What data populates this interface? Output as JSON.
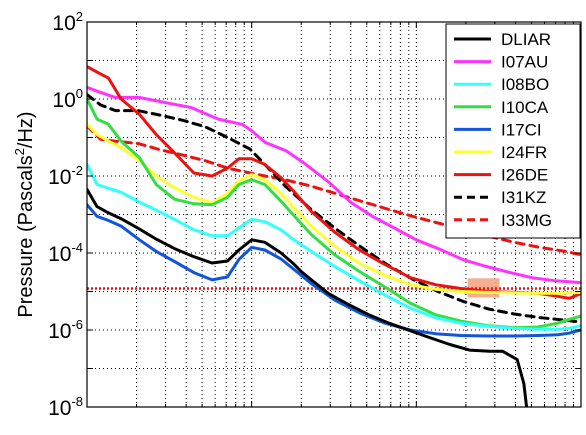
{
  "chart_data": {
    "type": "line",
    "title": "",
    "xlabel": "",
    "ylabel": {
      "prefix": "Pressure (Pascals",
      "sup": "2",
      "suffix": "/Hz)"
    },
    "yscale": "log",
    "ylim": [
      1e-08,
      100
    ],
    "xscale": "log",
    "xlim": [
      0.01,
      10
    ],
    "grid": true,
    "legend": "top-right",
    "yticks": [
      {
        "value": 100,
        "base": "10",
        "exp": "2"
      },
      {
        "value": 1,
        "base": "10",
        "exp": "0"
      },
      {
        "value": 0.01,
        "base": "10",
        "exp": "-2"
      },
      {
        "value": 0.0001,
        "base": "10",
        "exp": "-4"
      },
      {
        "value": 1e-06,
        "base": "10",
        "exp": "-6"
      },
      {
        "value": 1e-08,
        "base": "10",
        "exp": "-8"
      }
    ],
    "series": [
      {
        "name": "DLIAR",
        "color": "#000000",
        "dash": false,
        "x": [
          0.01,
          0.0115,
          0.0135,
          0.0161,
          0.0208,
          0.0263,
          0.034,
          0.0446,
          0.0575,
          0.0713,
          0.0837,
          0.1,
          0.1202,
          0.1509,
          0.1799,
          0.2,
          0.2304,
          0.2914,
          0.3868,
          0.5134,
          0.6819,
          0.9052,
          1.201,
          1.597,
          2.104,
          2.788,
          3.348,
          4.095,
          4.5,
          4.7,
          4.95
        ],
        "y": [
          0.0045,
          0.0016,
          0.0011,
          0.00078,
          0.00042,
          0.00023,
          0.00013,
          8e-05,
          5.5e-05,
          6.2e-05,
          0.00012,
          0.00022,
          0.00019,
          0.0001,
          5.2e-05,
          3.3e-05,
          2e-05,
          9e-06,
          4.6e-06,
          2.5e-06,
          1.5e-06,
          9.8e-07,
          6.4e-07,
          4.2e-07,
          3e-07,
          2.8e-07,
          2.8e-07,
          1.7e-07,
          4e-08,
          8e-09,
          1e-09
        ]
      },
      {
        "name": "I07AU",
        "color": "#ff33ff",
        "dash": false,
        "x": [
          0.01,
          0.012,
          0.0148,
          0.0207,
          0.0294,
          0.0428,
          0.0628,
          0.0874,
          0.1,
          0.1203,
          0.1622,
          0.2133,
          0.2932,
          0.4039,
          0.545,
          0.7547,
          1.0,
          1.388,
          1.906,
          2.593,
          3.61,
          5.0,
          7.0,
          10.0
        ],
        "y": [
          2.0,
          1.5,
          1.1,
          1.1,
          0.82,
          0.6,
          0.3,
          0.22,
          0.15,
          0.075,
          0.045,
          0.02,
          0.007,
          0.002,
          0.00088,
          0.00042,
          0.00022,
          0.000125,
          6.8e-05,
          4.6e-05,
          3.2e-05,
          2.3e-05,
          1.9e-05,
          1.7e-05
        ]
      },
      {
        "name": "I08BO",
        "color": "#33ffff",
        "dash": false,
        "x": [
          0.01,
          0.0115,
          0.0135,
          0.0161,
          0.0208,
          0.0263,
          0.034,
          0.0446,
          0.0575,
          0.0713,
          0.0837,
          0.1,
          0.1202,
          0.1509,
          0.1799,
          0.2304,
          0.3195,
          0.4508,
          0.6458,
          0.9181,
          1.306,
          1.857,
          2.701,
          3.957,
          5.5,
          7.2,
          8.5,
          10.0
        ],
        "y": [
          0.02,
          0.006,
          0.0048,
          0.0038,
          0.0021,
          0.0013,
          0.00075,
          0.0004,
          0.00028,
          0.00028,
          0.00045,
          0.00075,
          0.00065,
          0.0004,
          0.00022,
          0.00011,
          4.5e-05,
          1.9e-05,
          8e-06,
          3.7e-06,
          2.1e-06,
          1.5e-06,
          1.25e-06,
          1.1e-06,
          1.05e-06,
          1.05e-06,
          1.1e-06,
          1.3e-06
        ]
      },
      {
        "name": "I10CA",
        "color": "#33dd44",
        "dash": false,
        "x": [
          0.01,
          0.0115,
          0.0135,
          0.0161,
          0.0208,
          0.0263,
          0.034,
          0.0446,
          0.0575,
          0.0713,
          0.0837,
          0.1,
          0.1202,
          0.1509,
          0.1799,
          0.2304,
          0.3195,
          0.4508,
          0.6458,
          0.9181,
          1.306,
          1.857,
          2.701,
          3.957,
          5.5,
          7.2,
          8.5,
          10.0
        ],
        "y": [
          1.0,
          0.3,
          0.22,
          0.08,
          0.03,
          0.006,
          0.0025,
          0.0019,
          0.0018,
          0.0028,
          0.006,
          0.008,
          0.006,
          0.0022,
          0.00095,
          0.0003,
          9e-05,
          3.3e-05,
          1.3e-05,
          5e-06,
          2.5e-06,
          1.7e-06,
          1.3e-06,
          1.15e-06,
          1.2e-06,
          1.5e-06,
          1.9e-06,
          2.3e-06
        ]
      },
      {
        "name": "I17CI",
        "color": "#1155dd",
        "dash": false,
        "x": [
          0.01,
          0.0115,
          0.0135,
          0.0161,
          0.0208,
          0.0263,
          0.034,
          0.0446,
          0.0575,
          0.0713,
          0.0837,
          0.1,
          0.1202,
          0.1509,
          0.1799,
          0.2304,
          0.3195,
          0.4508,
          0.6458,
          0.9181,
          1.306,
          1.857,
          2.701,
          3.957,
          5.5,
          7.2,
          8.5,
          10.0
        ],
        "y": [
          0.0018,
          0.0009,
          0.0007,
          0.0005,
          0.00022,
          0.00011,
          6e-05,
          3.1e-05,
          2e-05,
          2.4e-05,
          6.8e-05,
          0.00014,
          0.00012,
          7e-05,
          3.8e-05,
          1.6e-05,
          6e-06,
          2.8e-06,
          1.5e-06,
          1e-06,
          8e-07,
          7.2e-07,
          7e-07,
          7e-07,
          7.2e-07,
          7.5e-07,
          8.3e-07,
          1e-06
        ]
      },
      {
        "name": "I24FR",
        "color": "#ffff33",
        "dash": false,
        "x": [
          0.01,
          0.0115,
          0.0135,
          0.0161,
          0.0208,
          0.0263,
          0.034,
          0.0446,
          0.0575,
          0.0713,
          0.0837,
          0.1,
          0.1202,
          0.1509,
          0.1799,
          0.2304,
          0.3195,
          0.4508,
          0.6458,
          0.9181,
          1.306,
          1.857,
          2.701,
          3.957,
          5.5,
          7.2,
          8.5,
          10.0
        ],
        "y": [
          0.22,
          0.12,
          0.08,
          0.055,
          0.025,
          0.01,
          0.005,
          0.0028,
          0.002,
          0.0035,
          0.0075,
          0.011,
          0.008,
          0.0035,
          0.0015,
          0.0005,
          0.00015,
          5.4e-05,
          2.6e-05,
          1.5e-05,
          1.15e-05,
          1e-05,
          9.5e-06,
          9.2e-06,
          9e-06,
          9e-06,
          9.2e-06,
          9.5e-06
        ]
      },
      {
        "name": "I26DE",
        "color": "#ee1111",
        "dash": false,
        "x": [
          0.01,
          0.0115,
          0.0135,
          0.0161,
          0.0208,
          0.0263,
          0.034,
          0.0446,
          0.0575,
          0.0713,
          0.0837,
          0.1,
          0.1202,
          0.1509,
          0.1799,
          0.2304,
          0.3195,
          0.4508,
          0.6458,
          0.9181,
          1.306,
          1.857,
          2.701,
          3.957,
          5.5,
          7.2,
          8.5,
          10.0
        ],
        "y": [
          7.0,
          5.0,
          3.5,
          1.0,
          0.4,
          0.12,
          0.04,
          0.012,
          0.01,
          0.016,
          0.028,
          0.028,
          0.02,
          0.009,
          0.004,
          0.0012,
          0.00035,
          0.00012,
          5e-05,
          2.3e-05,
          1.5e-05,
          1.2e-05,
          1e-05,
          9.5e-06,
          9e-06,
          7.5e-06,
          6.6e-06,
          9e-06
        ]
      },
      {
        "name": "I31KZ",
        "color": "#000000",
        "dash": true,
        "x": [
          0.01,
          0.0121,
          0.0149,
          0.0204,
          0.0279,
          0.0381,
          0.0522,
          0.0714,
          0.0977,
          0.1203,
          0.1595,
          0.2278,
          0.3252,
          0.4644,
          0.6631,
          0.9467,
          1.352,
          1.931,
          2.757,
          3.937,
          5.621,
          8.026,
          10.0
        ],
        "y": [
          1.3,
          0.7,
          0.5,
          0.5,
          0.38,
          0.28,
          0.19,
          0.1,
          0.05,
          0.02,
          0.0055,
          0.0014,
          0.00042,
          0.00014,
          5e-05,
          2.1e-05,
          1e-05,
          5.5e-06,
          3.5e-06,
          2.6e-06,
          2.1e-06,
          1.8e-06,
          1.6e-06
        ]
      },
      {
        "name": "I33MG",
        "color": "#ee1111",
        "dash": true,
        "x": [
          0.01,
          0.0121,
          0.0149,
          0.0204,
          0.0279,
          0.0381,
          0.0522,
          0.0714,
          0.0977,
          0.1203,
          0.1595,
          0.2278,
          0.3252,
          0.4644,
          0.6631,
          0.9467,
          1.352,
          1.931,
          2.757,
          3.937,
          5.621,
          8.026,
          10.0
        ],
        "y": [
          0.2,
          0.09,
          0.08,
          0.07,
          0.048,
          0.035,
          0.025,
          0.016,
          0.012,
          0.01,
          0.008,
          0.0055,
          0.0035,
          0.0022,
          0.0014,
          0.0009,
          0.0006,
          0.0004,
          0.00027,
          0.00019,
          0.00014,
          0.00011,
          9e-05
        ]
      }
    ],
    "reference_line": {
      "y": 1.2e-05,
      "color": "#ee1111",
      "style": "dotted"
    },
    "shaded_region": {
      "x": [
        2.05,
        3.2
      ],
      "y": [
        7e-06,
        2.2e-05
      ],
      "color": "#f4a080"
    }
  }
}
